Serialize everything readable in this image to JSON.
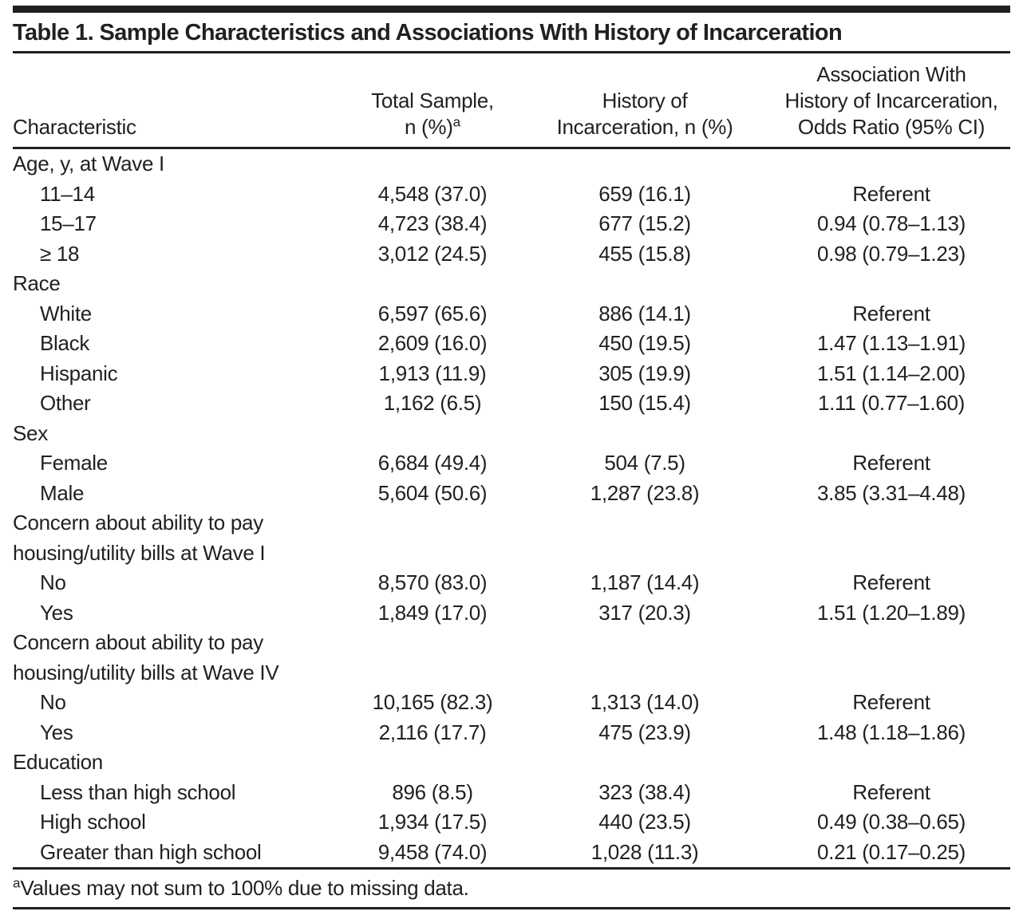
{
  "title": "Table 1. Sample Characteristics and Associations With History of Incarceration",
  "header": {
    "characteristic": "Characteristic",
    "total_sample": [
      "Total Sample,",
      "n (%)"
    ],
    "total_sample_sup": "a",
    "history": [
      "History of",
      "Incarceration, n (%)"
    ],
    "association": [
      "Association With",
      "History of Incarceration,",
      "Odds Ratio (95% CI)"
    ]
  },
  "rows": [
    {
      "group": true,
      "label": "Age, y, at Wave I",
      "total": "",
      "history": "",
      "odds_ratio": ""
    },
    {
      "group": false,
      "label": "11–14",
      "total": "4,548 (37.0)",
      "history": "659 (16.1)",
      "odds_ratio": "Referent"
    },
    {
      "group": false,
      "label": "15–17",
      "total": "4,723 (38.4)",
      "history": "677 (15.2)",
      "odds_ratio": "0.94 (0.78–1.13)"
    },
    {
      "group": false,
      "label": "≥ 18",
      "total": "3,012 (24.5)",
      "history": "455 (15.8)",
      "odds_ratio": "0.98 (0.79–1.23)"
    },
    {
      "group": true,
      "label": "Race",
      "total": "",
      "history": "",
      "odds_ratio": ""
    },
    {
      "group": false,
      "label": "White",
      "total": "6,597 (65.6)",
      "history": "886 (14.1)",
      "odds_ratio": "Referent"
    },
    {
      "group": false,
      "label": "Black",
      "total": "2,609 (16.0)",
      "history": "450 (19.5)",
      "odds_ratio": "1.47 (1.13–1.91)"
    },
    {
      "group": false,
      "label": "Hispanic",
      "total": "1,913 (11.9)",
      "history": "305 (19.9)",
      "odds_ratio": "1.51 (1.14–2.00)"
    },
    {
      "group": false,
      "label": "Other",
      "total": "1,162 (6.5)",
      "history": "150 (15.4)",
      "odds_ratio": "1.11 (0.77–1.60)"
    },
    {
      "group": true,
      "label": "Sex",
      "total": "",
      "history": "",
      "odds_ratio": ""
    },
    {
      "group": false,
      "label": "Female",
      "total": "6,684 (49.4)",
      "history": "504 (7.5)",
      "odds_ratio": "Referent"
    },
    {
      "group": false,
      "label": "Male",
      "total": "5,604 (50.6)",
      "history": "1,287 (23.8)",
      "odds_ratio": "3.85 (3.31–4.48)"
    },
    {
      "group": true,
      "label": "Concern about ability to pay housing/utility bills at Wave I",
      "total": "",
      "history": "",
      "odds_ratio": ""
    },
    {
      "group": false,
      "label": "No",
      "total": "8,570 (83.0)",
      "history": "1,187 (14.4)",
      "odds_ratio": "Referent"
    },
    {
      "group": false,
      "label": "Yes",
      "total": "1,849 (17.0)",
      "history": "317 (20.3)",
      "odds_ratio": "1.51 (1.20–1.89)"
    },
    {
      "group": true,
      "label": "Concern about ability to pay housing/utility bills at Wave IV",
      "total": "",
      "history": "",
      "odds_ratio": ""
    },
    {
      "group": false,
      "label": "No",
      "total": "10,165 (82.3)",
      "history": "1,313 (14.0)",
      "odds_ratio": "Referent"
    },
    {
      "group": false,
      "label": "Yes",
      "total": "2,116 (17.7)",
      "history": "475 (23.9)",
      "odds_ratio": "1.48 (1.18–1.86)"
    },
    {
      "group": true,
      "label": "Education",
      "total": "",
      "history": "",
      "odds_ratio": ""
    },
    {
      "group": false,
      "label": "Less than high school",
      "total": "896 (8.5)",
      "history": "323 (38.4)",
      "odds_ratio": "Referent"
    },
    {
      "group": false,
      "label": "High school",
      "total": "1,934 (17.5)",
      "history": "440 (23.5)",
      "odds_ratio": "0.49 (0.38–0.65)"
    },
    {
      "group": false,
      "label": "Greater than high school",
      "total": "9,458 (74.0)",
      "history": "1,028 (11.3)",
      "odds_ratio": "0.21 (0.17–0.25)"
    }
  ],
  "footnote": {
    "marker": "a",
    "text": "Values may not sum to 100% due to missing data."
  }
}
